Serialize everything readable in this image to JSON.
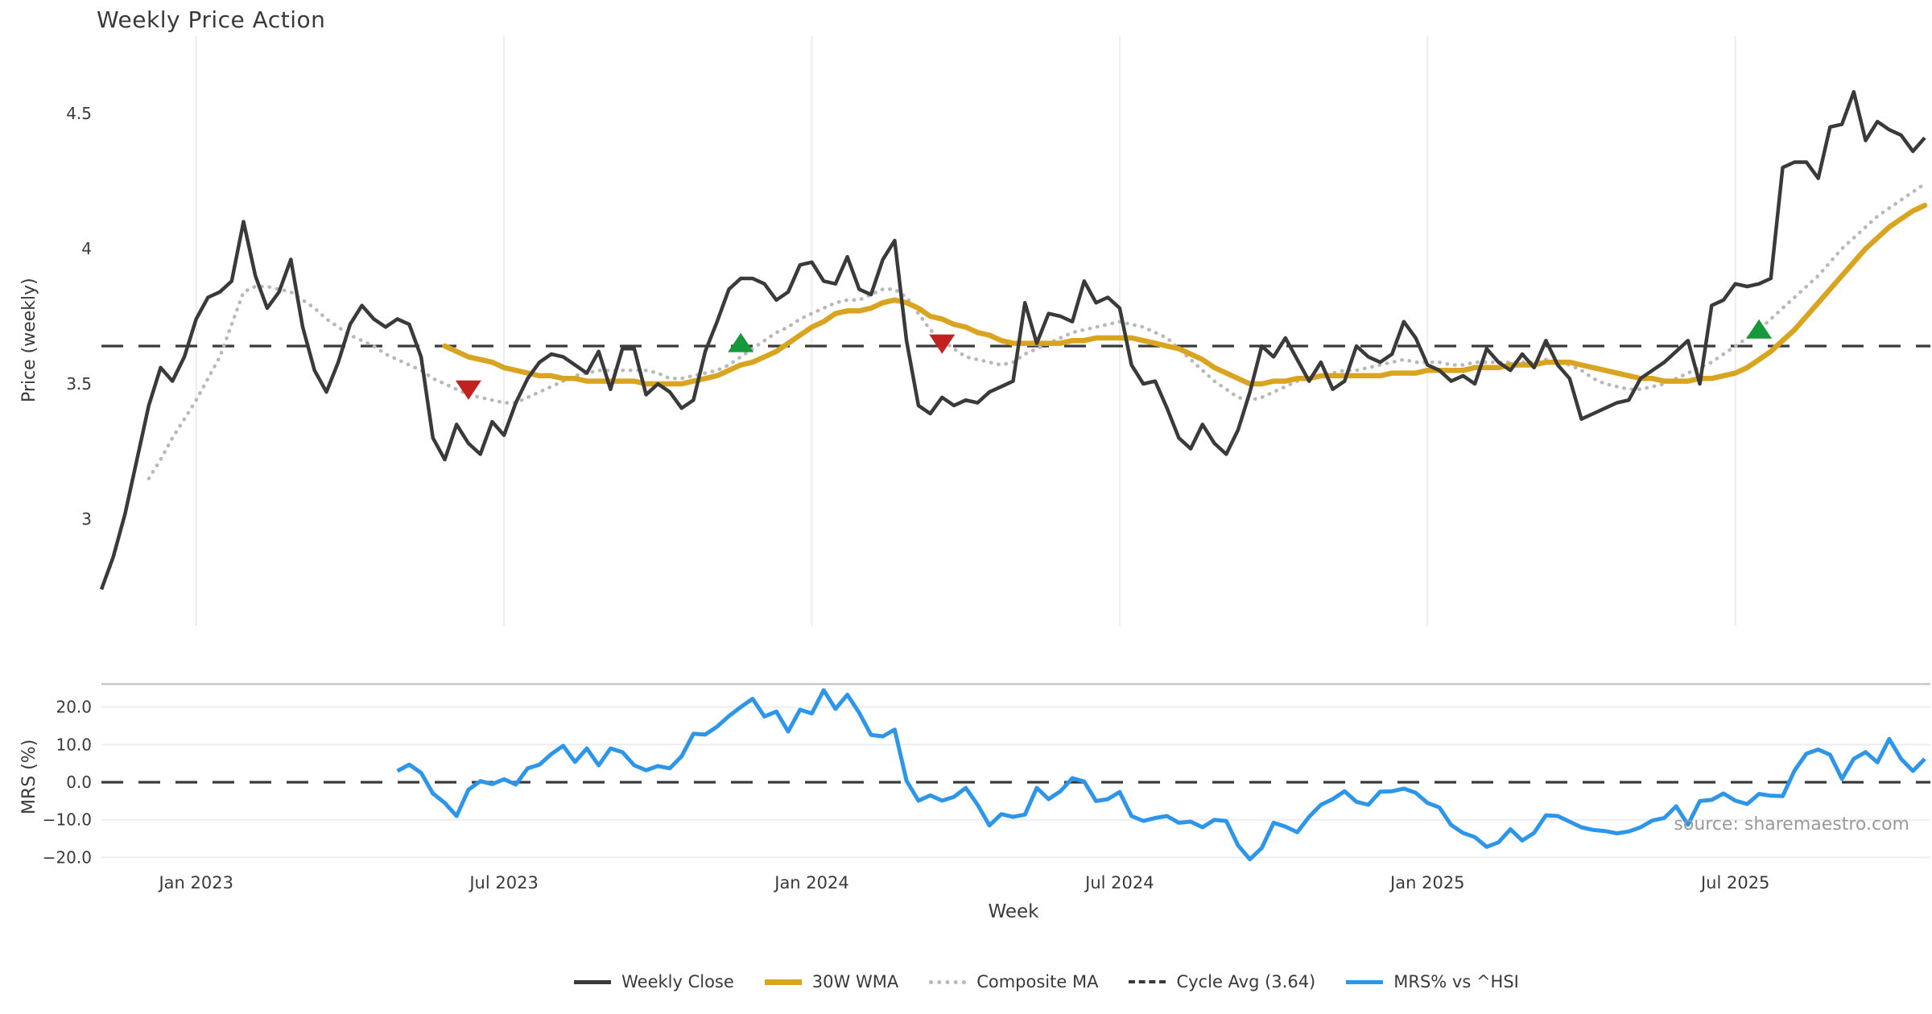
{
  "source_note": "source: sharemaestro.com",
  "legend": {
    "items": [
      {
        "label": "Weekly Close",
        "series": "weekly_close",
        "color": "#3a3a3a",
        "style": "solid"
      },
      {
        "label": "30W WMA",
        "series": "wma_30w",
        "color": "#d9a521",
        "style": "solid"
      },
      {
        "label": "Composite MA",
        "series": "composite_ma",
        "color": "#b9b9b9",
        "style": "dotted"
      },
      {
        "label": "Cycle Avg (3.64)",
        "series": "cycle_avg",
        "color": "#3a3a3a",
        "style": "dashed"
      },
      {
        "label": "MRS% vs ^HSI",
        "series": "mrs",
        "color": "#2e96e9",
        "style": "solid"
      }
    ]
  },
  "chart_data": {
    "type": "line",
    "title": "Weekly Price Action",
    "xlabel": "Week",
    "weeks_total": 155,
    "x_ticks": [
      {
        "label": "Jan 2023",
        "week": 8
      },
      {
        "label": "Jul 2023",
        "week": 34
      },
      {
        "label": "Jan 2024",
        "week": 60
      },
      {
        "label": "Jul 2024",
        "week": 86
      },
      {
        "label": "Jan 2025",
        "week": 112
      },
      {
        "label": "Jul 2025",
        "week": 138
      }
    ],
    "layout_hints": {
      "price_grid": "vertical-only",
      "mrs_grid": "horizontal-only",
      "legend_position": "bottom-center"
    },
    "price_panel": {
      "ylabel": "Price (weekly)",
      "ylim": [
        2.6,
        4.79
      ],
      "yticks": [
        {
          "label": "3",
          "value": 3.0
        },
        {
          "label": "3.5",
          "value": 3.5
        },
        {
          "label": "4",
          "value": 4.0
        },
        {
          "label": "4.5",
          "value": 4.5
        }
      ],
      "cycle_avg": 3.64,
      "markers": {
        "sell": [
          {
            "week": 31,
            "price": 3.48
          },
          {
            "week": 71,
            "price": 3.65
          }
        ],
        "buy": [
          {
            "week": 54,
            "price": 3.65
          },
          {
            "week": 140,
            "price": 3.7
          }
        ]
      },
      "series": {
        "weekly_close": {
          "start_week": 0,
          "color": "#3a3a3a",
          "values": [
            2.74,
            2.86,
            3.02,
            3.22,
            3.42,
            3.56,
            3.51,
            3.6,
            3.74,
            3.82,
            3.84,
            3.88,
            4.1,
            3.9,
            3.78,
            3.84,
            3.96,
            3.71,
            3.55,
            3.47,
            3.58,
            3.72,
            3.79,
            3.74,
            3.71,
            3.74,
            3.72,
            3.6,
            3.3,
            3.22,
            3.35,
            3.28,
            3.24,
            3.36,
            3.31,
            3.43,
            3.52,
            3.58,
            3.61,
            3.6,
            3.57,
            3.54,
            3.62,
            3.48,
            3.63,
            3.63,
            3.46,
            3.5,
            3.47,
            3.41,
            3.44,
            3.62,
            3.73,
            3.85,
            3.89,
            3.89,
            3.87,
            3.81,
            3.84,
            3.94,
            3.95,
            3.88,
            3.87,
            3.97,
            3.85,
            3.83,
            3.96,
            4.03,
            3.66,
            3.42,
            3.39,
            3.45,
            3.42,
            3.44,
            3.43,
            3.47,
            3.49,
            3.51,
            3.8,
            3.65,
            3.76,
            3.75,
            3.73,
            3.88,
            3.8,
            3.82,
            3.78,
            3.57,
            3.5,
            3.51,
            3.41,
            3.3,
            3.26,
            3.35,
            3.28,
            3.24,
            3.33,
            3.47,
            3.64,
            3.6,
            3.67,
            3.59,
            3.51,
            3.58,
            3.48,
            3.51,
            3.64,
            3.6,
            3.58,
            3.61,
            3.73,
            3.67,
            3.57,
            3.55,
            3.51,
            3.53,
            3.5,
            3.63,
            3.58,
            3.55,
            3.61,
            3.56,
            3.66,
            3.57,
            3.52,
            3.37,
            3.39,
            3.41,
            3.43,
            3.44,
            3.52,
            3.55,
            3.58,
            3.62,
            3.66,
            3.5,
            3.79,
            3.81,
            3.87,
            3.86,
            3.87,
            3.89,
            4.3,
            4.32,
            4.32,
            4.26,
            4.45,
            4.46,
            4.58,
            4.4,
            4.47,
            4.44,
            4.42,
            4.36,
            4.41
          ]
        },
        "wma_30w": {
          "start_week": 29,
          "color": "#d9a521",
          "values": [
            3.64,
            3.62,
            3.6,
            3.59,
            3.58,
            3.56,
            3.55,
            3.54,
            3.53,
            3.53,
            3.52,
            3.52,
            3.51,
            3.51,
            3.51,
            3.51,
            3.51,
            3.5,
            3.5,
            3.5,
            3.5,
            3.51,
            3.52,
            3.53,
            3.55,
            3.57,
            3.58,
            3.6,
            3.62,
            3.65,
            3.68,
            3.71,
            3.73,
            3.76,
            3.77,
            3.77,
            3.78,
            3.8,
            3.81,
            3.8,
            3.78,
            3.75,
            3.74,
            3.72,
            3.71,
            3.69,
            3.68,
            3.66,
            3.65,
            3.65,
            3.65,
            3.65,
            3.65,
            3.66,
            3.66,
            3.67,
            3.67,
            3.67,
            3.67,
            3.66,
            3.65,
            3.64,
            3.63,
            3.61,
            3.59,
            3.56,
            3.54,
            3.52,
            3.5,
            3.5,
            3.51,
            3.51,
            3.52,
            3.52,
            3.53,
            3.53,
            3.53,
            3.53,
            3.53,
            3.53,
            3.54,
            3.54,
            3.54,
            3.55,
            3.55,
            3.55,
            3.55,
            3.56,
            3.56,
            3.56,
            3.57,
            3.57,
            3.57,
            3.58,
            3.58,
            3.58,
            3.57,
            3.56,
            3.55,
            3.54,
            3.53,
            3.52,
            3.52,
            3.51,
            3.51,
            3.51,
            3.52,
            3.52,
            3.53,
            3.54,
            3.56,
            3.59,
            3.62,
            3.66,
            3.7,
            3.75,
            3.8,
            3.85,
            3.9,
            3.95,
            4.0,
            4.04,
            4.08,
            4.11,
            4.14,
            4.16
          ]
        },
        "composite_ma": {
          "start_week": 4,
          "color": "#b9b9b9",
          "values": [
            3.15,
            3.22,
            3.3,
            3.37,
            3.44,
            3.52,
            3.6,
            3.72,
            3.84,
            3.86,
            3.86,
            3.85,
            3.84,
            3.81,
            3.78,
            3.74,
            3.71,
            3.68,
            3.66,
            3.64,
            3.61,
            3.59,
            3.57,
            3.55,
            3.52,
            3.5,
            3.48,
            3.46,
            3.45,
            3.44,
            3.43,
            3.43,
            3.45,
            3.47,
            3.49,
            3.51,
            3.53,
            3.54,
            3.55,
            3.55,
            3.55,
            3.55,
            3.55,
            3.54,
            3.52,
            3.52,
            3.53,
            3.54,
            3.55,
            3.57,
            3.6,
            3.63,
            3.66,
            3.69,
            3.71,
            3.74,
            3.76,
            3.78,
            3.8,
            3.81,
            3.81,
            3.83,
            3.85,
            3.85,
            3.82,
            3.76,
            3.7,
            3.66,
            3.63,
            3.6,
            3.59,
            3.58,
            3.57,
            3.58,
            3.61,
            3.63,
            3.65,
            3.67,
            3.69,
            3.7,
            3.71,
            3.72,
            3.73,
            3.72,
            3.71,
            3.69,
            3.67,
            3.63,
            3.59,
            3.55,
            3.51,
            3.48,
            3.45,
            3.44,
            3.45,
            3.47,
            3.49,
            3.51,
            3.52,
            3.53,
            3.54,
            3.55,
            3.55,
            3.56,
            3.57,
            3.58,
            3.59,
            3.58,
            3.58,
            3.58,
            3.57,
            3.57,
            3.58,
            3.58,
            3.58,
            3.58,
            3.58,
            3.58,
            3.59,
            3.58,
            3.57,
            3.55,
            3.52,
            3.5,
            3.49,
            3.48,
            3.48,
            3.49,
            3.5,
            3.52,
            3.54,
            3.56,
            3.58,
            3.61,
            3.64,
            3.67,
            3.7,
            3.74,
            3.78,
            3.82,
            3.86,
            3.9,
            3.95,
            4.0,
            4.04,
            4.08,
            4.12,
            4.15,
            4.18,
            4.21,
            4.24
          ]
        }
      }
    },
    "mrs_panel": {
      "ylabel": "MRS (%)",
      "ylim": [
        -22,
        26
      ],
      "yticks": [
        {
          "label": "20.0",
          "value": 20
        },
        {
          "label": "10.0",
          "value": 10
        },
        {
          "label": "0.0",
          "value": 0
        },
        {
          "label": "−10.0",
          "value": -10
        },
        {
          "label": "−20.0",
          "value": -20
        }
      ],
      "zero_line": 0,
      "series": {
        "mrs": {
          "start_week": 25,
          "color": "#2e96e9",
          "values": [
            3.0,
            4.7,
            2.5,
            -3.0,
            -5.5,
            -9.0,
            -2.0,
            0.3,
            -0.5,
            0.8,
            -0.6,
            3.7,
            4.7,
            7.5,
            9.7,
            5.4,
            9.0,
            4.5,
            9.0,
            8.0,
            4.5,
            3.2,
            4.3,
            3.7,
            6.9,
            12.9,
            12.7,
            14.8,
            17.6,
            20.0,
            22.2,
            17.5,
            18.8,
            13.5,
            19.3,
            18.3,
            24.5,
            19.5,
            23.3,
            18.5,
            12.6,
            12.2,
            14.0,
            0.4,
            -4.9,
            -3.5,
            -4.9,
            -3.9,
            -1.5,
            -6.0,
            -11.5,
            -8.5,
            -9.2,
            -8.6,
            -1.5,
            -4.5,
            -2.4,
            1.1,
            0.2,
            -5.0,
            -4.5,
            -2.6,
            -9.0,
            -10.3,
            -9.5,
            -9.0,
            -10.8,
            -10.5,
            -12.0,
            -10.0,
            -10.3,
            -16.8,
            -20.5,
            -17.5,
            -10.8,
            -11.8,
            -13.3,
            -9.2,
            -6.0,
            -4.5,
            -2.4,
            -5.2,
            -6.0,
            -2.5,
            -2.4,
            -1.7,
            -2.8,
            -5.5,
            -6.7,
            -11.4,
            -13.5,
            -14.6,
            -17.2,
            -16.0,
            -12.5,
            -15.5,
            -13.5,
            -8.8,
            -9.0,
            -10.5,
            -12.0,
            -12.7,
            -13.0,
            -13.6,
            -13.1,
            -12.0,
            -10.2,
            -9.5,
            -6.4,
            -11.3,
            -5.0,
            -4.7,
            -3.0,
            -4.9,
            -5.8,
            -3.1,
            -3.6,
            -3.7,
            3.1,
            7.6,
            8.7,
            7.3,
            0.9,
            6.2,
            8.0,
            5.3,
            11.5,
            6.2,
            3.0,
            6.2
          ]
        }
      }
    }
  }
}
